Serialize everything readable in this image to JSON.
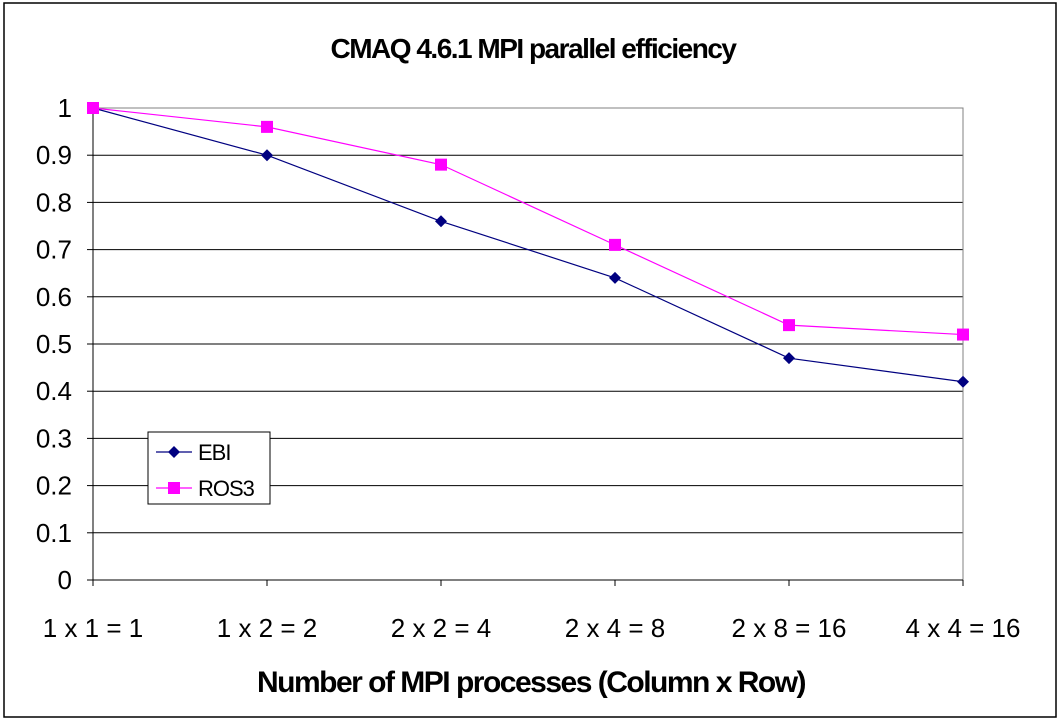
{
  "chart_data": {
    "type": "line",
    "title": "CMAQ 4.6.1 MPI parallel efficiency",
    "xlabel": "Number of MPI processes (Column x Row)",
    "ylabel": "",
    "categories": [
      "1x1=1",
      "1x2=2",
      "2x2=4",
      "2x4=8",
      "2x8=16",
      "4x4=16"
    ],
    "ylim": [
      0,
      1
    ],
    "yticks": [
      "0",
      "0.1",
      "0.2",
      "0.3",
      "0.4",
      "0.5",
      "0.6",
      "0.7",
      "0.8",
      "0.9",
      "1"
    ],
    "grid": true,
    "legend_position": "lower-left",
    "series": [
      {
        "name": "EBI",
        "values": [
          1.0,
          0.9,
          0.76,
          0.64,
          0.47,
          0.42
        ],
        "color": "#000080",
        "marker": "diamond"
      },
      {
        "name": "ROS3",
        "values": [
          1.0,
          0.96,
          0.88,
          0.71,
          0.54,
          0.52
        ],
        "color": "#FF00FF",
        "marker": "square"
      }
    ]
  }
}
